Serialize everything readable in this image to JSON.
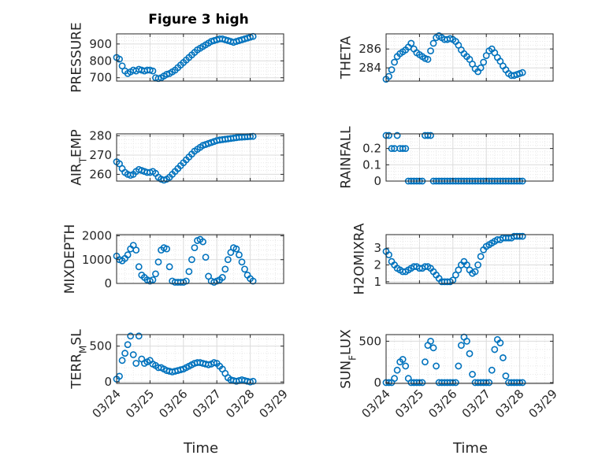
{
  "figure": {
    "title": "Figure 3 high",
    "x_date_ticks": [
      "03/24",
      "03/25",
      "03/26",
      "03/27",
      "03/28",
      "03/29"
    ],
    "bottom_xlabel": "Time",
    "marker_color": "#0072BD"
  },
  "chart_data": [
    {
      "type": "scatter",
      "ylabel": "PRESSURE",
      "x": [
        "03/24 00:00",
        "03/24 02:00",
        "03/24 04:00",
        "03/24 06:00",
        "03/24 08:00",
        "03/24 10:00",
        "03/24 12:00",
        "03/24 14:00",
        "03/24 16:00",
        "03/24 18:00",
        "03/24 20:00",
        "03/24 22:00",
        "03/25 00:00",
        "03/25 02:00",
        "03/25 04:00",
        "03/25 06:00",
        "03/25 08:00",
        "03/25 10:00",
        "03/25 12:00",
        "03/25 14:00",
        "03/25 16:00",
        "03/25 18:00",
        "03/25 20:00",
        "03/25 22:00",
        "03/26 00:00",
        "03/26 02:00",
        "03/26 04:00",
        "03/26 06:00",
        "03/26 08:00",
        "03/26 10:00",
        "03/26 12:00",
        "03/26 14:00",
        "03/26 16:00",
        "03/26 18:00",
        "03/26 20:00",
        "03/26 22:00",
        "03/27 00:00",
        "03/27 02:00",
        "03/27 04:00",
        "03/27 06:00",
        "03/27 08:00",
        "03/27 10:00",
        "03/27 12:00",
        "03/27 14:00",
        "03/27 16:00",
        "03/27 18:00",
        "03/27 20:00",
        "03/27 22:00",
        "03/28 00:00",
        "03/28 02:00"
      ],
      "y": [
        820,
        810,
        770,
        740,
        725,
        735,
        745,
        740,
        750,
        745,
        740,
        745,
        745,
        740,
        700,
        695,
        700,
        710,
        720,
        725,
        735,
        745,
        760,
        775,
        790,
        805,
        820,
        835,
        850,
        865,
        875,
        885,
        895,
        905,
        915,
        920,
        925,
        930,
        930,
        925,
        920,
        915,
        910,
        915,
        920,
        925,
        930,
        935,
        940,
        945
      ],
      "yticks": [
        700,
        800,
        900
      ],
      "ylim": [
        680,
        960
      ],
      "xlim": [
        "03/24",
        "03/29"
      ],
      "show_x_ticklabels": false,
      "grid": true
    },
    {
      "type": "scatter",
      "ylabel": "THETA",
      "x": [
        "03/24 00:00",
        "03/24 02:00",
        "03/24 04:00",
        "03/24 06:00",
        "03/24 08:00",
        "03/24 10:00",
        "03/24 12:00",
        "03/24 14:00",
        "03/24 16:00",
        "03/24 18:00",
        "03/24 20:00",
        "03/24 22:00",
        "03/25 00:00",
        "03/25 02:00",
        "03/25 04:00",
        "03/25 06:00",
        "03/25 08:00",
        "03/25 10:00",
        "03/25 12:00",
        "03/25 14:00",
        "03/25 16:00",
        "03/25 18:00",
        "03/25 20:00",
        "03/25 22:00",
        "03/26 00:00",
        "03/26 02:00",
        "03/26 04:00",
        "03/26 06:00",
        "03/26 08:00",
        "03/26 10:00",
        "03/26 12:00",
        "03/26 14:00",
        "03/26 16:00",
        "03/26 18:00",
        "03/26 20:00",
        "03/26 22:00",
        "03/27 00:00",
        "03/27 02:00",
        "03/27 04:00",
        "03/27 06:00",
        "03/27 08:00",
        "03/27 10:00",
        "03/27 12:00",
        "03/27 14:00",
        "03/27 16:00",
        "03/27 18:00",
        "03/27 20:00",
        "03/27 22:00",
        "03/28 00:00",
        "03/28 02:00"
      ],
      "y": [
        282.8,
        283.1,
        283.8,
        284.6,
        285.2,
        285.5,
        285.7,
        285.9,
        286.2,
        286.6,
        286.0,
        285.6,
        285.4,
        285.2,
        285.0,
        284.9,
        285.8,
        286.6,
        287.2,
        287.4,
        287.2,
        287.0,
        287.0,
        287.1,
        287.0,
        286.8,
        286.4,
        285.9,
        285.5,
        285.2,
        284.9,
        284.4,
        283.9,
        283.6,
        284.0,
        284.6,
        285.3,
        285.8,
        286.0,
        285.6,
        285.1,
        284.7,
        284.2,
        283.8,
        283.4,
        283.2,
        283.2,
        283.3,
        283.4,
        283.5
      ],
      "yticks": [
        284,
        286
      ],
      "ylim": [
        282.6,
        287.6
      ],
      "xlim": [
        "03/24",
        "03/29"
      ],
      "show_x_ticklabels": false,
      "grid": true
    },
    {
      "type": "scatter",
      "ylabel": "AIR_TEMP",
      "x": [
        "03/24 00:00",
        "03/24 02:00",
        "03/24 04:00",
        "03/24 06:00",
        "03/24 08:00",
        "03/24 10:00",
        "03/24 12:00",
        "03/24 14:00",
        "03/24 16:00",
        "03/24 18:00",
        "03/24 20:00",
        "03/24 22:00",
        "03/25 00:00",
        "03/25 02:00",
        "03/25 04:00",
        "03/25 06:00",
        "03/25 08:00",
        "03/25 10:00",
        "03/25 12:00",
        "03/25 14:00",
        "03/25 16:00",
        "03/25 18:00",
        "03/25 20:00",
        "03/25 22:00",
        "03/26 00:00",
        "03/26 02:00",
        "03/26 04:00",
        "03/26 06:00",
        "03/26 08:00",
        "03/26 10:00",
        "03/26 12:00",
        "03/26 14:00",
        "03/26 16:00",
        "03/26 18:00",
        "03/26 20:00",
        "03/26 22:00",
        "03/27 00:00",
        "03/27 02:00",
        "03/27 04:00",
        "03/27 06:00",
        "03/27 08:00",
        "03/27 10:00",
        "03/27 12:00",
        "03/27 14:00",
        "03/27 16:00",
        "03/27 18:00",
        "03/27 20:00",
        "03/27 22:00",
        "03/28 00:00",
        "03/28 02:00"
      ],
      "y": [
        266.5,
        265.5,
        263.0,
        261.0,
        260.0,
        259.5,
        260.0,
        261.5,
        262.5,
        262.0,
        261.5,
        261.0,
        261.0,
        261.5,
        260.5,
        258.5,
        257.5,
        257.0,
        257.5,
        258.5,
        260.0,
        261.5,
        263.0,
        264.5,
        266.0,
        267.5,
        269.0,
        270.5,
        272.0,
        273.0,
        274.0,
        275.0,
        275.5,
        276.0,
        276.5,
        277.0,
        277.5,
        277.8,
        278.0,
        278.2,
        278.4,
        278.6,
        278.8,
        279.0,
        279.2,
        279.3,
        279.4,
        279.5,
        279.6,
        279.7
      ],
      "yticks": [
        260,
        270,
        280
      ],
      "ylim": [
        256.5,
        281
      ],
      "xlim": [
        "03/24",
        "03/29"
      ],
      "show_x_ticklabels": false,
      "grid": true
    },
    {
      "type": "scatter",
      "ylabel": "RAINFALL",
      "x": [
        "03/24 00:00",
        "03/24 02:00",
        "03/24 04:00",
        "03/24 06:00",
        "03/24 08:00",
        "03/24 10:00",
        "03/24 12:00",
        "03/24 14:00",
        "03/24 16:00",
        "03/24 18:00",
        "03/24 20:00",
        "03/24 22:00",
        "03/25 00:00",
        "03/25 02:00",
        "03/25 04:00",
        "03/25 06:00",
        "03/25 08:00",
        "03/25 10:00",
        "03/25 12:00",
        "03/25 14:00",
        "03/25 16:00",
        "03/25 18:00",
        "03/25 20:00",
        "03/25 22:00",
        "03/26 00:00",
        "03/26 02:00",
        "03/26 04:00",
        "03/26 06:00",
        "03/26 08:00",
        "03/26 10:00",
        "03/26 12:00",
        "03/26 14:00",
        "03/26 16:00",
        "03/26 18:00",
        "03/26 20:00",
        "03/26 22:00",
        "03/27 00:00",
        "03/27 02:00",
        "03/27 04:00",
        "03/27 06:00",
        "03/27 08:00",
        "03/27 10:00",
        "03/27 12:00",
        "03/27 14:00",
        "03/27 16:00",
        "03/27 18:00",
        "03/27 20:00",
        "03/27 22:00",
        "03/28 00:00",
        "03/28 02:00"
      ],
      "y": [
        0.28,
        0.28,
        0.2,
        0.2,
        0.28,
        0.2,
        0.2,
        0.2,
        0,
        0,
        0,
        0,
        0,
        0,
        0.28,
        0.28,
        0.28,
        0,
        0,
        0,
        0,
        0,
        0,
        0,
        0,
        0,
        0,
        0,
        0,
        0,
        0,
        0,
        0,
        0,
        0,
        0,
        0,
        0,
        0,
        0,
        0,
        0,
        0,
        0,
        0,
        0,
        0,
        0,
        0,
        0
      ],
      "yticks": [
        0,
        0.1,
        0.2
      ],
      "ylim": [
        0,
        0.29
      ],
      "xlim": [
        "03/24",
        "03/29"
      ],
      "show_x_ticklabels": false,
      "grid": true
    },
    {
      "type": "scatter",
      "ylabel": "MIXDEPTH",
      "x": [
        "03/24 00:00",
        "03/24 02:00",
        "03/24 04:00",
        "03/24 06:00",
        "03/24 08:00",
        "03/24 10:00",
        "03/24 12:00",
        "03/24 14:00",
        "03/24 16:00",
        "03/24 18:00",
        "03/24 20:00",
        "03/24 22:00",
        "03/25 00:00",
        "03/25 02:00",
        "03/25 04:00",
        "03/25 06:00",
        "03/25 08:00",
        "03/25 10:00",
        "03/25 12:00",
        "03/25 14:00",
        "03/25 16:00",
        "03/25 18:00",
        "03/25 20:00",
        "03/25 22:00",
        "03/26 00:00",
        "03/26 02:00",
        "03/26 04:00",
        "03/26 06:00",
        "03/26 08:00",
        "03/26 10:00",
        "03/26 12:00",
        "03/26 14:00",
        "03/26 16:00",
        "03/26 18:00",
        "03/26 20:00",
        "03/26 22:00",
        "03/27 00:00",
        "03/27 02:00",
        "03/27 04:00",
        "03/27 06:00",
        "03/27 08:00",
        "03/27 10:00",
        "03/27 12:00",
        "03/27 14:00",
        "03/27 16:00",
        "03/27 18:00",
        "03/27 20:00",
        "03/27 22:00",
        "03/28 00:00",
        "03/28 02:00"
      ],
      "y": [
        1150,
        1000,
        950,
        1050,
        1200,
        1450,
        1600,
        1400,
        700,
        350,
        250,
        150,
        100,
        150,
        400,
        900,
        1400,
        1500,
        1450,
        700,
        100,
        50,
        50,
        50,
        50,
        100,
        500,
        1000,
        1500,
        1800,
        1850,
        1750,
        1100,
        300,
        100,
        50,
        100,
        150,
        250,
        600,
        1000,
        1300,
        1500,
        1450,
        1200,
        900,
        600,
        350,
        200,
        100
      ],
      "yticks": [
        0,
        1000,
        2000
      ],
      "ylim": [
        0,
        2050
      ],
      "xlim": [
        "03/24",
        "03/29"
      ],
      "show_x_ticklabels": false,
      "grid": true
    },
    {
      "type": "scatter",
      "ylabel": "H2OMIXRA",
      "x": [
        "03/24 00:00",
        "03/24 02:00",
        "03/24 04:00",
        "03/24 06:00",
        "03/24 08:00",
        "03/24 10:00",
        "03/24 12:00",
        "03/24 14:00",
        "03/24 16:00",
        "03/24 18:00",
        "03/24 20:00",
        "03/24 22:00",
        "03/25 00:00",
        "03/25 02:00",
        "03/25 04:00",
        "03/25 06:00",
        "03/25 08:00",
        "03/25 10:00",
        "03/25 12:00",
        "03/25 14:00",
        "03/25 16:00",
        "03/25 18:00",
        "03/25 20:00",
        "03/25 22:00",
        "03/26 00:00",
        "03/26 02:00",
        "03/26 04:00",
        "03/26 06:00",
        "03/26 08:00",
        "03/26 10:00",
        "03/26 12:00",
        "03/26 14:00",
        "03/26 16:00",
        "03/26 18:00",
        "03/26 20:00",
        "03/26 22:00",
        "03/27 00:00",
        "03/27 02:00",
        "03/27 04:00",
        "03/27 06:00",
        "03/27 08:00",
        "03/27 10:00",
        "03/27 12:00",
        "03/27 14:00",
        "03/27 16:00",
        "03/27 18:00",
        "03/27 20:00",
        "03/27 22:00",
        "03/28 00:00",
        "03/28 02:00"
      ],
      "y": [
        2.8,
        2.6,
        2.2,
        2.0,
        1.8,
        1.7,
        1.6,
        1.6,
        1.7,
        1.8,
        1.9,
        1.9,
        1.8,
        1.8,
        1.9,
        1.9,
        1.8,
        1.6,
        1.4,
        1.2,
        1.0,
        1.0,
        1.0,
        1.0,
        1.1,
        1.4,
        1.7,
        2.0,
        2.2,
        2.0,
        1.7,
        1.5,
        1.6,
        2.0,
        2.5,
        2.9,
        3.1,
        3.2,
        3.3,
        3.4,
        3.5,
        3.5,
        3.6,
        3.6,
        3.6,
        3.6,
        3.7,
        3.7,
        3.7,
        3.7
      ],
      "yticks": [
        1,
        2,
        3
      ],
      "ylim": [
        0.9,
        3.8
      ],
      "xlim": [
        "03/24",
        "03/29"
      ],
      "show_x_ticklabels": false,
      "grid": true
    },
    {
      "type": "scatter",
      "ylabel": "TERR_MSL",
      "x": [
        "03/24 00:00",
        "03/24 02:00",
        "03/24 04:00",
        "03/24 06:00",
        "03/24 08:00",
        "03/24 10:00",
        "03/24 12:00",
        "03/24 14:00",
        "03/24 16:00",
        "03/24 18:00",
        "03/24 20:00",
        "03/24 22:00",
        "03/25 00:00",
        "03/25 02:00",
        "03/25 04:00",
        "03/25 06:00",
        "03/25 08:00",
        "03/25 10:00",
        "03/25 12:00",
        "03/25 14:00",
        "03/25 16:00",
        "03/25 18:00",
        "03/25 20:00",
        "03/25 22:00",
        "03/26 00:00",
        "03/26 02:00",
        "03/26 04:00",
        "03/26 06:00",
        "03/26 08:00",
        "03/26 10:00",
        "03/26 12:00",
        "03/26 14:00",
        "03/26 16:00",
        "03/26 18:00",
        "03/26 20:00",
        "03/26 22:00",
        "03/27 00:00",
        "03/27 02:00",
        "03/27 04:00",
        "03/27 06:00",
        "03/27 08:00",
        "03/27 10:00",
        "03/27 12:00",
        "03/27 14:00",
        "03/27 16:00",
        "03/27 18:00",
        "03/27 20:00",
        "03/27 22:00",
        "03/28 00:00",
        "03/28 02:00"
      ],
      "y": [
        40,
        80,
        300,
        400,
        520,
        640,
        380,
        260,
        640,
        320,
        260,
        280,
        300,
        250,
        230,
        200,
        200,
        180,
        160,
        150,
        140,
        150,
        160,
        170,
        180,
        200,
        220,
        240,
        260,
        270,
        270,
        260,
        250,
        240,
        250,
        270,
        260,
        220,
        180,
        120,
        60,
        30,
        20,
        10,
        20,
        30,
        20,
        10,
        0,
        10
      ],
      "yticks": [
        0,
        500
      ],
      "ylim": [
        -20,
        660
      ],
      "xlim": [
        "03/24",
        "03/29"
      ],
      "show_x_ticklabels": true,
      "grid": true
    },
    {
      "type": "scatter",
      "ylabel": "SUN_FLUX",
      "x": [
        "03/24 00:00",
        "03/24 02:00",
        "03/24 04:00",
        "03/24 06:00",
        "03/24 08:00",
        "03/24 10:00",
        "03/24 12:00",
        "03/24 14:00",
        "03/24 16:00",
        "03/24 18:00",
        "03/24 20:00",
        "03/24 22:00",
        "03/25 00:00",
        "03/25 02:00",
        "03/25 04:00",
        "03/25 06:00",
        "03/25 08:00",
        "03/25 10:00",
        "03/25 12:00",
        "03/25 14:00",
        "03/25 16:00",
        "03/25 18:00",
        "03/25 20:00",
        "03/25 22:00",
        "03/26 00:00",
        "03/26 02:00",
        "03/26 04:00",
        "03/26 06:00",
        "03/26 08:00",
        "03/26 10:00",
        "03/26 12:00",
        "03/26 14:00",
        "03/26 16:00",
        "03/26 18:00",
        "03/26 20:00",
        "03/26 22:00",
        "03/27 00:00",
        "03/27 02:00",
        "03/27 04:00",
        "03/27 06:00",
        "03/27 08:00",
        "03/27 10:00",
        "03/27 12:00",
        "03/27 14:00",
        "03/27 16:00",
        "03/27 18:00",
        "03/27 20:00",
        "03/27 22:00",
        "03/28 00:00",
        "03/28 02:00"
      ],
      "y": [
        0,
        0,
        0,
        50,
        150,
        250,
        280,
        200,
        50,
        0,
        0,
        0,
        0,
        0,
        250,
        450,
        500,
        420,
        200,
        0,
        0,
        0,
        0,
        0,
        0,
        0,
        200,
        450,
        550,
        500,
        350,
        100,
        0,
        0,
        0,
        0,
        0,
        0,
        150,
        400,
        520,
        480,
        300,
        80,
        0,
        0,
        0,
        0,
        0,
        0
      ],
      "yticks": [
        0,
        500
      ],
      "ylim": [
        -10,
        580
      ],
      "xlim": [
        "03/24",
        "03/29"
      ],
      "show_x_ticklabels": true,
      "grid": true
    }
  ]
}
